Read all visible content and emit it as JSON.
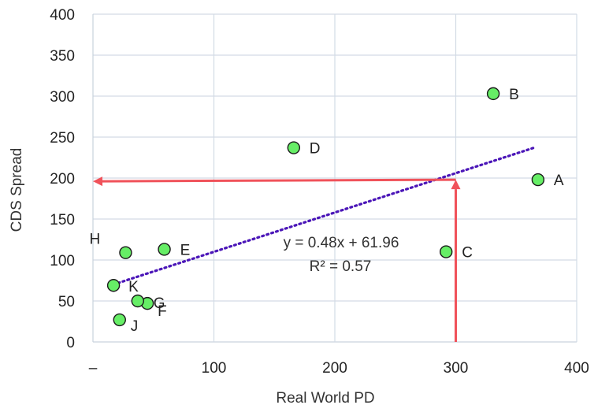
{
  "chart_data": {
    "type": "scatter",
    "title": "",
    "xlabel": "Real World PD",
    "ylabel": "CDS Spread",
    "xlim": [
      0,
      400
    ],
    "ylim": [
      0,
      400
    ],
    "x_ticks": [
      0,
      100,
      200,
      300,
      400
    ],
    "x_tick_labels": [
      "–",
      "100",
      "200",
      "300",
      "400"
    ],
    "y_ticks": [
      0,
      50,
      100,
      150,
      200,
      250,
      300,
      350,
      400
    ],
    "y_tick_labels": [
      "0",
      "50",
      "100",
      "150",
      "200",
      "250",
      "300",
      "350",
      "400"
    ],
    "grid": true,
    "points": [
      {
        "label": "A",
        "x": 368,
        "y": 198
      },
      {
        "label": "B",
        "x": 331,
        "y": 303
      },
      {
        "label": "C",
        "x": 292,
        "y": 110
      },
      {
        "label": "D",
        "x": 166,
        "y": 237
      },
      {
        "label": "E",
        "x": 59,
        "y": 113
      },
      {
        "label": "F",
        "x": 45,
        "y": 47
      },
      {
        "label": "G",
        "x": 37,
        "y": 50
      },
      {
        "label": "H",
        "x": 27,
        "y": 109
      },
      {
        "label": "J",
        "x": 22,
        "y": 27
      },
      {
        "label": "K",
        "x": 17,
        "y": 69
      }
    ],
    "trendline": {
      "slope": 0.48,
      "intercept": 61.96,
      "x_range": [
        17,
        365
      ],
      "equation_text": "y = 0.48x + 61.96",
      "r2_text": "R² = 0.57"
    },
    "arrows": [
      {
        "from": [
          300,
          0
        ],
        "to": [
          300,
          198
        ]
      },
      {
        "from": [
          300,
          198
        ],
        "to": [
          0,
          196
        ]
      }
    ],
    "colors": {
      "point_fill": "#66ee66",
      "point_stroke": "#1a1a1a",
      "trendline": "#4b16b8",
      "arrow": "#f0525a",
      "grid": "#d3dbe5",
      "axis": "#c9d2dd"
    }
  }
}
